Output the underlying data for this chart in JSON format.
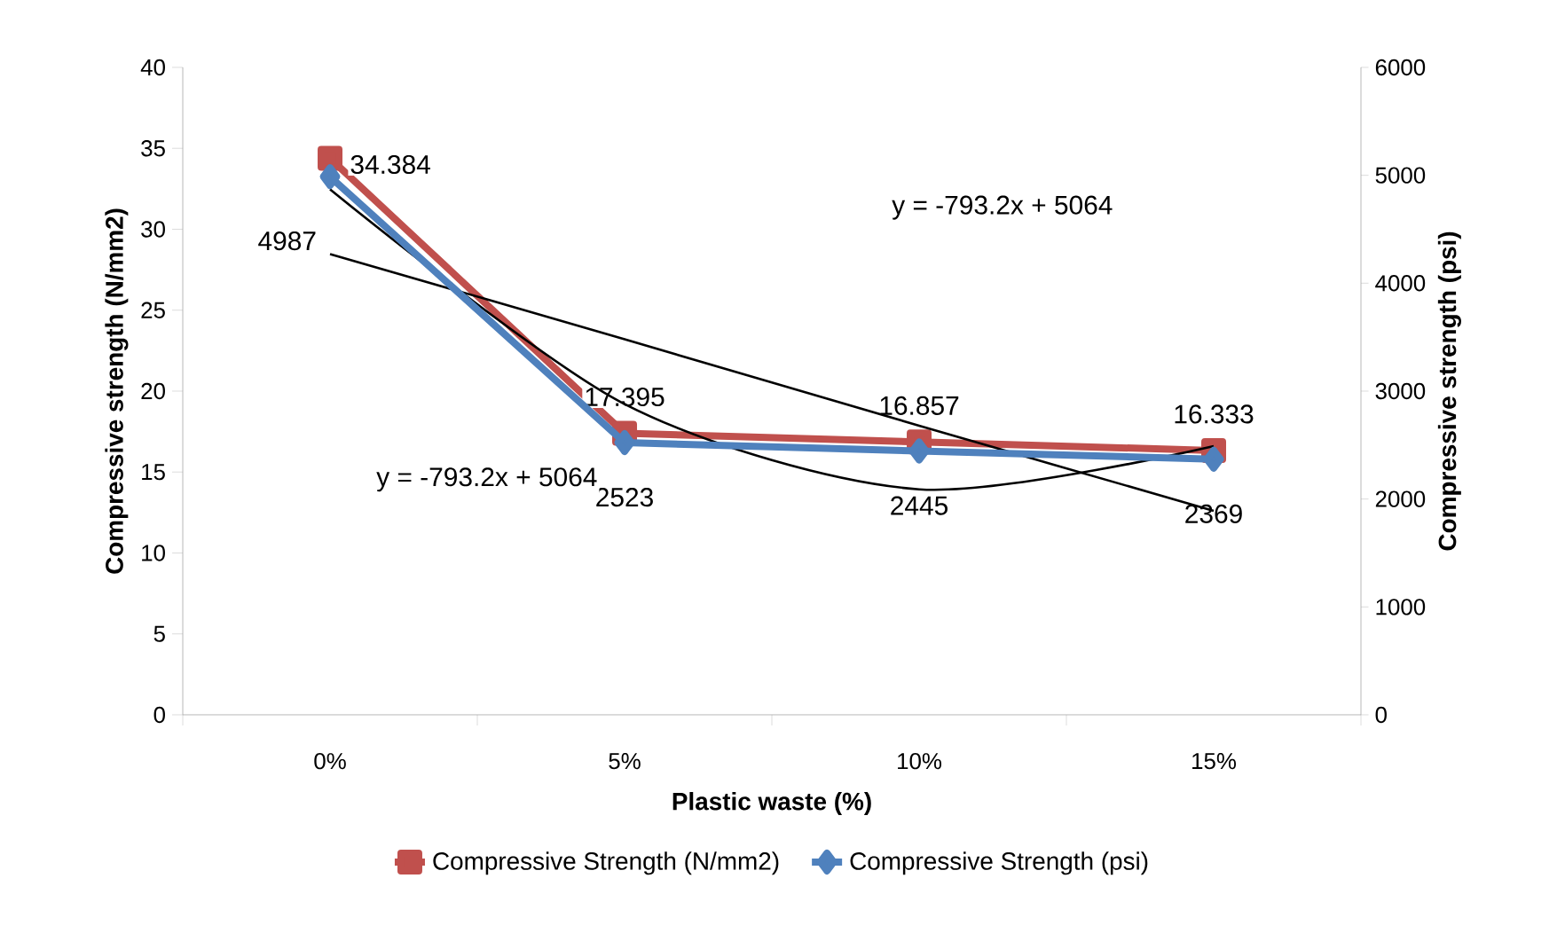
{
  "chart_data": {
    "type": "line",
    "xlabel": "Plastic waste (%)",
    "ylabel": "Compressive strength (N/mm2)",
    "y2label": "Compressive strength (psi)",
    "categories": [
      "0%",
      "5%",
      "10%",
      "15%"
    ],
    "series": [
      {
        "name": "Compressive Strength (N/mm2)",
        "color": "#c0504d",
        "marker": "square",
        "values": [
          34.384,
          17.395,
          16.857,
          16.333
        ],
        "value_labels": [
          "34.384",
          "17.395",
          "16.857",
          "16.333"
        ]
      },
      {
        "name": "Compressive Strength (psi)",
        "color": "#4f81bd",
        "marker": "diamond",
        "axis": "y2",
        "values": [
          4987,
          2523,
          2445,
          2369
        ],
        "value_labels": [
          "4987",
          "2523",
          "2445",
          "2369"
        ]
      },
      {
        "type": "line",
        "color": "#000000",
        "marker": "none",
        "axis": "y2",
        "values": [
          4270,
          3480,
          2680,
          1890
        ]
      },
      {
        "type": "line",
        "color": "#000000",
        "marker": "none",
        "axis": "y2",
        "values": [
          4870,
          2880,
          2090,
          2490
        ]
      }
    ],
    "ylim": [
      0,
      40
    ],
    "yticks": [
      0,
      5,
      10,
      15,
      20,
      25,
      30,
      35,
      40
    ],
    "y2lim": [
      0,
      6000
    ],
    "y2ticks": [
      0,
      1000,
      2000,
      3000,
      4000,
      5000,
      6000
    ],
    "annotations": [
      "y = -793.2x + 5064",
      "y = -793.2x + 5064"
    ],
    "legend": "bottom"
  }
}
